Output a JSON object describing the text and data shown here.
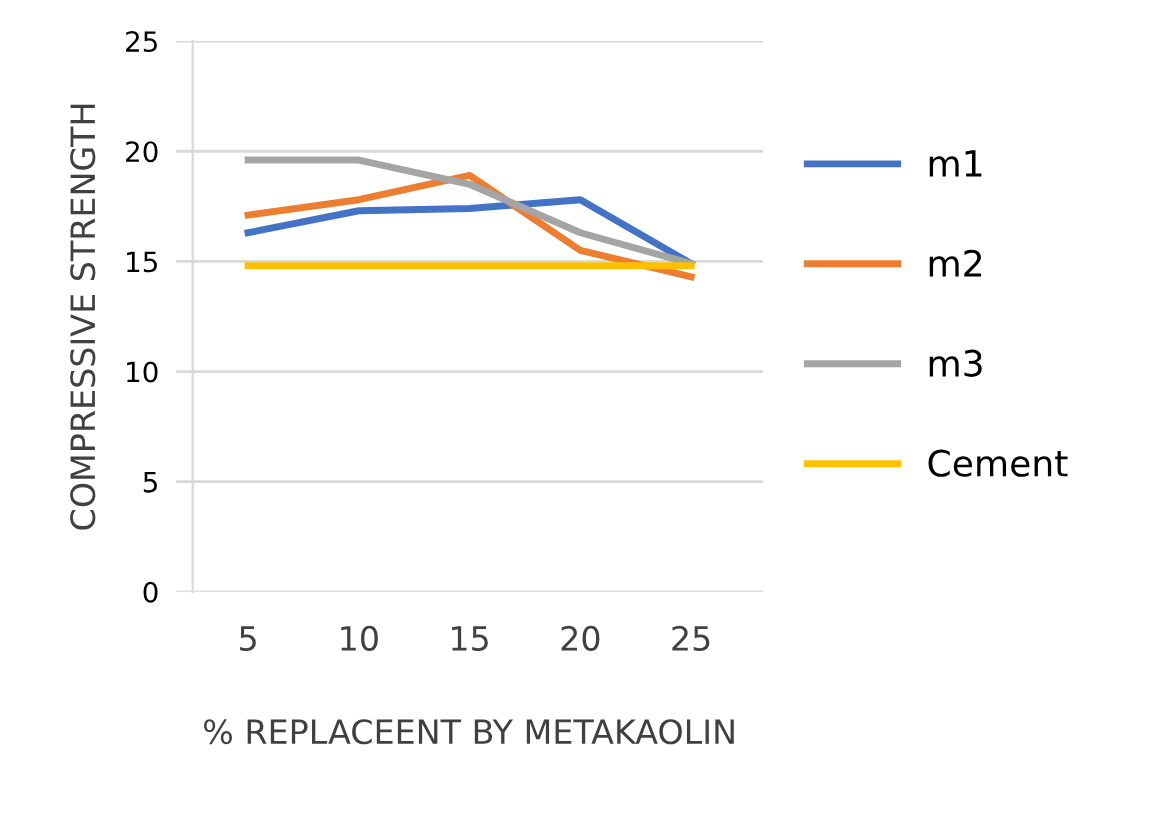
{
  "chart_data": {
    "type": "line",
    "xlabel": "% REPLACEENT BY METAKAOLIN",
    "ylabel": "COMPRESSIVE STRENGTH",
    "categories": [
      "5",
      "10",
      "15",
      "20",
      "25"
    ],
    "series": [
      {
        "name": "m1",
        "color": "#4472c4",
        "values": [
          16.3,
          17.3,
          17.4,
          17.8,
          14.9
        ]
      },
      {
        "name": "m2",
        "color": "#ed7d31",
        "values": [
          17.1,
          17.8,
          18.9,
          15.5,
          14.3
        ]
      },
      {
        "name": "m3",
        "color": "#a5a5a5",
        "values": [
          19.6,
          19.6,
          18.5,
          16.3,
          14.9
        ]
      },
      {
        "name": "Cement",
        "color": "#ffc000",
        "values": [
          14.8,
          14.8,
          14.8,
          14.8,
          14.8
        ]
      }
    ],
    "ylim": [
      0,
      25
    ],
    "yticks": [
      0,
      5,
      10,
      15,
      20,
      25
    ],
    "grid": "y",
    "legend": "right",
    "marker": "none",
    "line_style": "solid"
  }
}
